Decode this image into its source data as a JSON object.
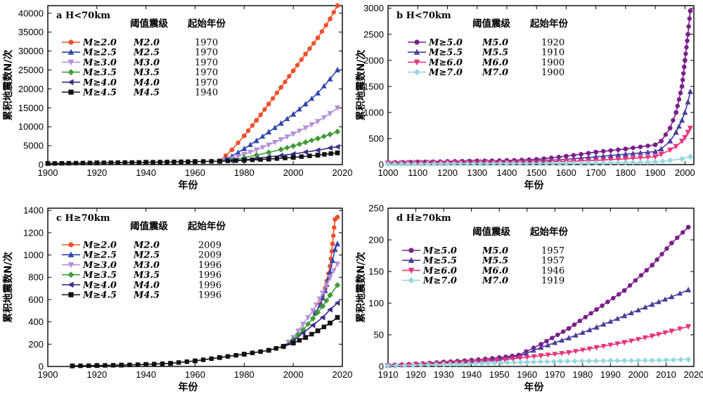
{
  "chart_data": [
    {
      "type": "line",
      "panel_label": "a",
      "title": "H<70km",
      "xlabel": "年份",
      "ylabel": "累积地震数N/次",
      "xlim": [
        1900,
        2020
      ],
      "ylim": [
        0,
        42000
      ],
      "xticks": [
        1900,
        1920,
        1940,
        1960,
        1980,
        2000,
        2020
      ],
      "yticks": [
        0,
        5000,
        10000,
        15000,
        20000,
        25000,
        30000,
        35000,
        40000
      ],
      "legend_position": "top-left",
      "table_headers": [
        "阈值震级",
        "起始年份"
      ],
      "series": [
        {
          "name": "M≥2.0",
          "threshold": "M2.0",
          "start_year": "1970",
          "color": "#f0502a",
          "marker": "circle",
          "x": [
            1970,
            1975,
            1980,
            1985,
            1990,
            1995,
            2000,
            2005,
            2010,
            2015,
            2018
          ],
          "y": [
            900,
            3900,
            7600,
            11700,
            16000,
            20400,
            24800,
            29200,
            33500,
            38500,
            42000
          ]
        },
        {
          "name": "M≥2.5",
          "threshold": "M2.5",
          "start_year": "1970",
          "color": "#2f46b0",
          "marker": "triangle-up",
          "x": [
            1970,
            1975,
            1980,
            1985,
            1990,
            1995,
            2000,
            2005,
            2010,
            2015,
            2018
          ],
          "y": [
            900,
            2200,
            4200,
            6300,
            8600,
            10900,
            13300,
            16000,
            18900,
            22600,
            25000
          ]
        },
        {
          "name": "M≥3.0",
          "threshold": "M3.0",
          "start_year": "1970",
          "color": "#b68fd8",
          "marker": "triangle-down",
          "x": [
            1970,
            1975,
            1980,
            1985,
            1990,
            1995,
            2000,
            2005,
            2010,
            2015,
            2018
          ],
          "y": [
            900,
            1600,
            2700,
            3900,
            5200,
            6600,
            8100,
            9700,
            11400,
            13500,
            15000
          ]
        },
        {
          "name": "M≥3.5",
          "threshold": "M3.5",
          "start_year": "1970",
          "color": "#3f9b35",
          "marker": "diamond",
          "x": [
            1970,
            1975,
            1980,
            1985,
            1990,
            1995,
            2000,
            2005,
            2010,
            2015,
            2018
          ],
          "y": [
            900,
            1200,
            1800,
            2500,
            3200,
            4000,
            4900,
            5900,
            6900,
            8000,
            8700
          ]
        },
        {
          "name": "M≥4.0",
          "threshold": "M4.0",
          "start_year": "1970",
          "color": "#3a2e8a",
          "marker": "triangle-left",
          "x": [
            1970,
            1975,
            1980,
            1985,
            1990,
            1995,
            2000,
            2005,
            2010,
            2015,
            2018
          ],
          "y": [
            900,
            1000,
            1300,
            1600,
            2000,
            2400,
            2800,
            3300,
            3800,
            4400,
            4700
          ]
        },
        {
          "name": "M≥4.5",
          "threshold": "M4.5",
          "start_year": "1940",
          "color": "#111111",
          "marker": "square",
          "x": [
            1900,
            1920,
            1940,
            1960,
            1970,
            1980,
            1990,
            2000,
            2010,
            2018
          ],
          "y": [
            300,
            450,
            600,
            800,
            900,
            1150,
            1450,
            1900,
            2500,
            3100
          ]
        }
      ]
    },
    {
      "type": "line",
      "panel_label": "b",
      "title": "H<70km",
      "xlabel": "年份",
      "ylabel": "累积地震数N/次",
      "xlim": [
        1000,
        2030
      ],
      "ylim": [
        0,
        3050
      ],
      "xticks": [
        1000,
        1100,
        1200,
        1300,
        1400,
        1500,
        1600,
        1700,
        1800,
        1900,
        2000
      ],
      "yticks": [
        0,
        500,
        1000,
        1500,
        2000,
        2500,
        3000
      ],
      "legend_position": "top-left",
      "table_headers": [
        "阈值震级",
        "起始年份"
      ],
      "series": [
        {
          "name": "M≥5.0",
          "threshold": "M5.0",
          "start_year": "1920",
          "color": "#7a1e8a",
          "marker": "circle",
          "x": [
            1000,
            1100,
            1200,
            1300,
            1400,
            1500,
            1600,
            1700,
            1800,
            1900,
            1920,
            1950,
            1970,
            1990,
            2000,
            2010,
            2018
          ],
          "y": [
            40,
            50,
            60,
            70,
            80,
            100,
            160,
            240,
            300,
            380,
            450,
            700,
            1000,
            1500,
            2000,
            2500,
            2950
          ]
        },
        {
          "name": "M≥5.5",
          "threshold": "M5.5",
          "start_year": "1910",
          "color": "#4c3c9c",
          "marker": "triangle-up",
          "x": [
            1000,
            1200,
            1400,
            1500,
            1600,
            1700,
            1800,
            1900,
            1920,
            1950,
            1970,
            1990,
            2000,
            2010,
            2018
          ],
          "y": [
            40,
            50,
            60,
            70,
            100,
            150,
            200,
            250,
            300,
            450,
            620,
            850,
            1000,
            1200,
            1400
          ]
        },
        {
          "name": "M≥6.0",
          "threshold": "M6.0",
          "start_year": "1900",
          "color": "#e8327e",
          "marker": "triangle-down",
          "x": [
            1000,
            1200,
            1400,
            1600,
            1700,
            1800,
            1900,
            1920,
            1950,
            1970,
            1990,
            2000,
            2010,
            2018
          ],
          "y": [
            30,
            40,
            45,
            60,
            80,
            110,
            150,
            200,
            280,
            350,
            450,
            520,
            620,
            700
          ]
        },
        {
          "name": "M≥7.0",
          "threshold": "M7.0",
          "start_year": "1900",
          "color": "#96d8e0",
          "marker": "diamond",
          "x": [
            1000,
            1200,
            1400,
            1600,
            1700,
            1800,
            1900,
            1950,
            1990,
            2018
          ],
          "y": [
            10,
            15,
            20,
            25,
            30,
            40,
            50,
            80,
            110,
            150
          ]
        }
      ]
    },
    {
      "type": "line",
      "panel_label": "c",
      "title": "H≥70km",
      "xlabel": "年份",
      "ylabel": "累积地震数N/次",
      "xlim": [
        1900,
        2020
      ],
      "ylim": [
        0,
        1420
      ],
      "xticks": [
        1900,
        1920,
        1940,
        1960,
        1980,
        2000,
        2020
      ],
      "yticks": [
        0,
        200,
        400,
        600,
        800,
        1000,
        1200,
        1400
      ],
      "legend_position": "top-left",
      "table_headers": [
        "阈值震级",
        "起始年份"
      ],
      "series": [
        {
          "name": "M≥2.0",
          "threshold": "M2.0",
          "start_year": "2009",
          "color": "#f0502a",
          "marker": "circle",
          "x": [
            2009,
            2011,
            2013,
            2015,
            2016,
            2017,
            2018
          ],
          "y": [
            480,
            560,
            700,
            900,
            1100,
            1320,
            1340
          ]
        },
        {
          "name": "M≥2.5",
          "threshold": "M2.5",
          "start_year": "2009",
          "color": "#2f46b0",
          "marker": "triangle-up",
          "x": [
            2009,
            2011,
            2013,
            2015,
            2016,
            2017,
            2018
          ],
          "y": [
            480,
            550,
            680,
            850,
            950,
            1050,
            1100
          ]
        },
        {
          "name": "M≥3.0",
          "threshold": "M3.0",
          "start_year": "1996",
          "color": "#b68fd8",
          "marker": "triangle-down",
          "x": [
            1996,
            2000,
            2004,
            2008,
            2012,
            2015,
            2018
          ],
          "y": [
            180,
            260,
            380,
            500,
            660,
            800,
            920
          ]
        },
        {
          "name": "M≥3.5",
          "threshold": "M3.5",
          "start_year": "1996",
          "color": "#3f9b35",
          "marker": "diamond",
          "x": [
            1996,
            2000,
            2004,
            2008,
            2012,
            2015,
            2018
          ],
          "y": [
            180,
            240,
            330,
            430,
            540,
            640,
            730
          ]
        },
        {
          "name": "M≥4.0",
          "threshold": "M4.0",
          "start_year": "1996",
          "color": "#3a2e8a",
          "marker": "triangle-left",
          "x": [
            1996,
            2000,
            2004,
            2008,
            2012,
            2015,
            2018
          ],
          "y": [
            180,
            230,
            300,
            370,
            440,
            510,
            570
          ]
        },
        {
          "name": "M≥4.5",
          "threshold": "M4.5",
          "start_year": "1996",
          "color": "#111111",
          "marker": "square",
          "x": [
            1910,
            1920,
            1930,
            1940,
            1950,
            1960,
            1970,
            1980,
            1990,
            1996,
            2000,
            2005,
            2010,
            2015,
            2018
          ],
          "y": [
            5,
            8,
            12,
            18,
            28,
            50,
            80,
            110,
            145,
            180,
            210,
            260,
            320,
            390,
            440
          ]
        }
      ]
    },
    {
      "type": "line",
      "panel_label": "d",
      "title": "H≥70km",
      "xlabel": "年份",
      "ylabel": "累积地震数N/次",
      "xlim": [
        1910,
        2020
      ],
      "ylim": [
        0,
        250
      ],
      "xticks": [
        1910,
        1920,
        1930,
        1940,
        1950,
        1960,
        1970,
        1980,
        1990,
        2000,
        2010,
        2020
      ],
      "yticks": [
        0,
        50,
        100,
        150,
        200,
        250
      ],
      "legend_position": "top-left",
      "table_headers": [
        "阈值震级",
        "起始年份"
      ],
      "series": [
        {
          "name": "M≥5.0",
          "threshold": "M5.0",
          "start_year": "1957",
          "color": "#7a1e8a",
          "marker": "circle",
          "x": [
            1910,
            1920,
            1930,
            1940,
            1950,
            1957,
            1965,
            1975,
            1985,
            1995,
            2005,
            2012,
            2018
          ],
          "y": [
            2,
            4,
            7,
            10,
            14,
            18,
            35,
            60,
            90,
            120,
            160,
            195,
            220
          ]
        },
        {
          "name": "M≥5.5",
          "threshold": "M5.5",
          "start_year": "1957",
          "color": "#4c3c9c",
          "marker": "triangle-up",
          "x": [
            1910,
            1920,
            1930,
            1940,
            1950,
            1957,
            1965,
            1975,
            1985,
            1995,
            2005,
            2012,
            2018
          ],
          "y": [
            2,
            4,
            6,
            9,
            12,
            16,
            30,
            45,
            62,
            80,
            98,
            110,
            121
          ]
        },
        {
          "name": "M≥6.0",
          "threshold": "M6.0",
          "start_year": "1946",
          "color": "#e8327e",
          "marker": "triangle-down",
          "x": [
            1910,
            1920,
            1930,
            1946,
            1955,
            1965,
            1975,
            1985,
            1995,
            2005,
            2012,
            2018
          ],
          "y": [
            1,
            3,
            5,
            9,
            12,
            17,
            22,
            30,
            38,
            48,
            56,
            63
          ]
        },
        {
          "name": "M≥7.0",
          "threshold": "M7.0",
          "start_year": "1919",
          "color": "#96d8e0",
          "marker": "diamond",
          "x": [
            1910,
            1919,
            1930,
            1946,
            1960,
            1972,
            1990,
            2010,
            2018
          ],
          "y": [
            1,
            2,
            3,
            5,
            7,
            8,
            9,
            10,
            11
          ]
        }
      ]
    }
  ]
}
